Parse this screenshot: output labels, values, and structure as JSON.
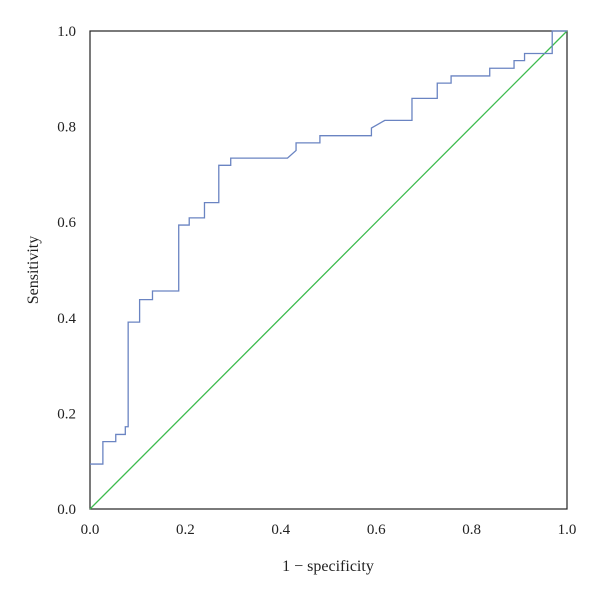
{
  "chart_data": {
    "type": "line",
    "xlabel": "1 − specificity",
    "ylabel": "Sensitivity",
    "xlim": [
      0,
      1
    ],
    "ylim": [
      0,
      1
    ],
    "xticks": [
      "0.0",
      "0.2",
      "0.4",
      "0.6",
      "0.8",
      "1.0"
    ],
    "yticks": [
      "0.0",
      "0.2",
      "0.4",
      "0.6",
      "0.8",
      "1.0"
    ],
    "grid": false,
    "legend": "none",
    "series": [
      {
        "color": "#6a84c2",
        "style": "step",
        "points": [
          [
            0.0,
            0.094
          ],
          [
            0.027,
            0.094
          ],
          [
            0.027,
            0.141
          ],
          [
            0.054,
            0.141
          ],
          [
            0.054,
            0.156
          ],
          [
            0.074,
            0.156
          ],
          [
            0.074,
            0.172
          ],
          [
            0.08,
            0.172
          ],
          [
            0.08,
            0.391
          ],
          [
            0.104,
            0.391
          ],
          [
            0.104,
            0.438
          ],
          [
            0.131,
            0.438
          ],
          [
            0.131,
            0.456
          ],
          [
            0.186,
            0.456
          ],
          [
            0.186,
            0.594
          ],
          [
            0.208,
            0.594
          ],
          [
            0.208,
            0.609
          ],
          [
            0.24,
            0.609
          ],
          [
            0.24,
            0.641
          ],
          [
            0.27,
            0.641
          ],
          [
            0.27,
            0.719
          ],
          [
            0.295,
            0.719
          ],
          [
            0.295,
            0.734
          ],
          [
            0.414,
            0.734
          ],
          [
            0.432,
            0.75
          ],
          [
            0.432,
            0.766
          ],
          [
            0.482,
            0.766
          ],
          [
            0.482,
            0.781
          ],
          [
            0.59,
            0.781
          ],
          [
            0.59,
            0.797
          ],
          [
            0.618,
            0.813
          ],
          [
            0.675,
            0.813
          ],
          [
            0.675,
            0.859
          ],
          [
            0.728,
            0.859
          ],
          [
            0.728,
            0.891
          ],
          [
            0.757,
            0.891
          ],
          [
            0.757,
            0.906
          ],
          [
            0.838,
            0.906
          ],
          [
            0.838,
            0.922
          ],
          [
            0.889,
            0.922
          ],
          [
            0.889,
            0.938
          ],
          [
            0.911,
            0.938
          ],
          [
            0.911,
            0.953
          ],
          [
            0.969,
            0.953
          ],
          [
            0.969,
            1.0
          ],
          [
            1.0,
            1.0
          ]
        ]
      },
      {
        "color": "#3dbb4e",
        "style": "line",
        "points": [
          [
            0,
            0
          ],
          [
            1,
            1
          ]
        ]
      }
    ]
  }
}
